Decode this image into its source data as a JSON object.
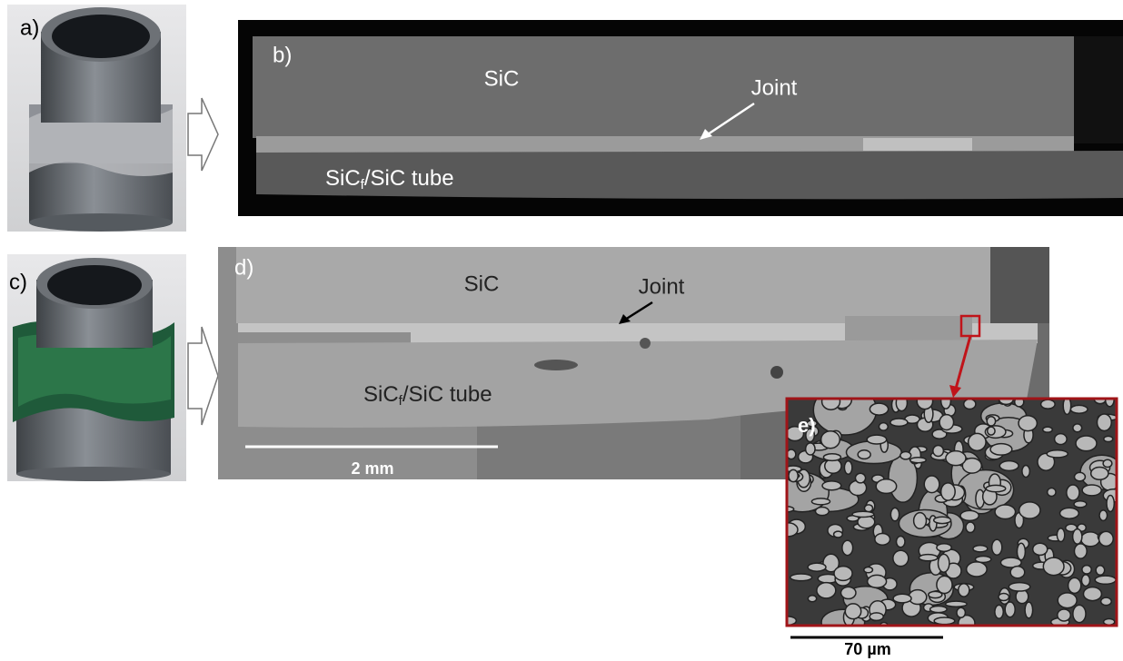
{
  "panels": {
    "a": {
      "label": "a)"
    },
    "b": {
      "label": "b)",
      "top": "SiC",
      "joint": "Joint",
      "tube": {
        "prefix": "SiC",
        "sub": "f",
        "suffix": "/SiC tube"
      }
    },
    "c": {
      "label": "c)"
    },
    "d": {
      "label": "d)",
      "top": "SiC",
      "joint": "Joint",
      "tube": {
        "prefix": "SiC",
        "sub": "f",
        "suffix": "/SiC tube"
      },
      "scale_bar": "2 mm"
    },
    "e": {
      "label": "e)",
      "scale_bar": "70 µm"
    }
  }
}
